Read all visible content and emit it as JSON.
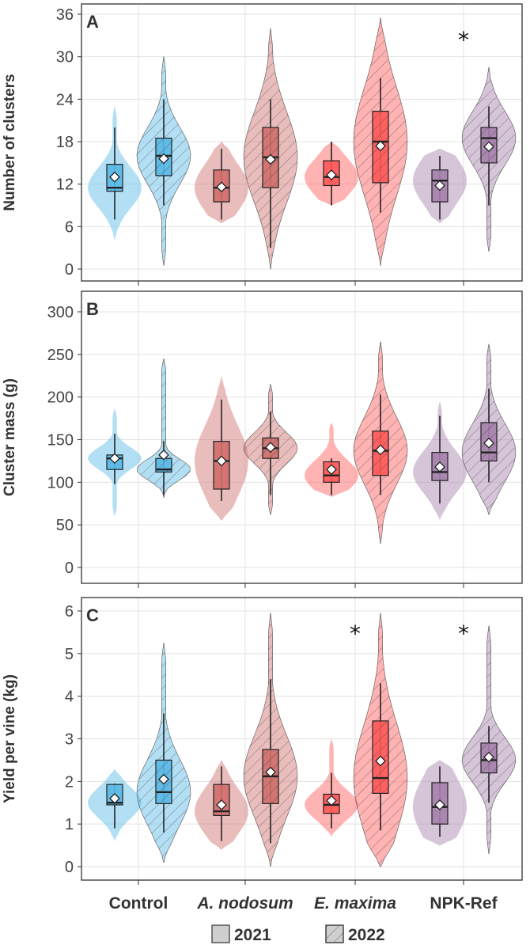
{
  "chart_data": [
    {
      "type": "violin",
      "panel": "A",
      "ylabel": "Number of clusters",
      "ylim": [
        0,
        36
      ],
      "yticks": [
        0,
        6,
        12,
        18,
        24,
        30,
        36
      ],
      "categories": [
        "Control",
        "A. nodosum",
        "E. maxima",
        "NPK-Ref"
      ],
      "colors": [
        "#56b8e6",
        "#cf6d6a",
        "#ff5757",
        "#a57fab"
      ],
      "series": [
        {
          "name": "2021",
          "box": [
            {
              "min": 7,
              "q1": 11,
              "median": 11.5,
              "q3": 14.8,
              "max": 20,
              "mean": 13,
              "range": [
                4,
                23
              ]
            },
            {
              "min": 7,
              "q1": 9.5,
              "median": 11.5,
              "q3": 14,
              "max": 17,
              "mean": 11.6,
              "range": [
                6.5,
                18
              ]
            },
            {
              "min": 9,
              "q1": 11.8,
              "median": 13,
              "q3": 15.3,
              "max": 18,
              "mean": 13.3,
              "range": [
                9,
                18
              ]
            },
            {
              "min": 7,
              "q1": 9.5,
              "median": 12.5,
              "q3": 14,
              "max": 16,
              "mean": 11.8,
              "range": [
                6.5,
                17
              ]
            }
          ]
        },
        {
          "name": "2022",
          "box": [
            {
              "min": 9,
              "q1": 13.2,
              "median": 16,
              "q3": 18.5,
              "max": 24,
              "mean": 15.6,
              "range": [
                0.5,
                30
              ]
            },
            {
              "min": 3,
              "q1": 11.5,
              "median": 15.8,
              "q3": 20,
              "max": 24,
              "mean": 15.5,
              "range": [
                0,
                34
              ]
            },
            {
              "min": 8,
              "q1": 12.2,
              "median": 18,
              "q3": 22.3,
              "max": 27,
              "mean": 17.4,
              "range": [
                0.5,
                35.5
              ]
            },
            {
              "min": 9,
              "q1": 15,
              "median": 18.5,
              "q3": 20,
              "max": 23,
              "mean": 17.3,
              "range": [
                2.5,
                28.5
              ]
            }
          ]
        }
      ],
      "significance": [
        {
          "category": "NPK-Ref",
          "year": "2022",
          "marker": "*"
        }
      ]
    },
    {
      "type": "violin",
      "panel": "B",
      "ylabel": "Cluster mass (g)",
      "ylim": [
        0,
        300
      ],
      "yticks": [
        0,
        50,
        100,
        150,
        200,
        250,
        300
      ],
      "categories": [
        "Control",
        "A. nodosum",
        "E. maxima",
        "NPK-Ref"
      ],
      "series": [
        {
          "name": "2021",
          "box": [
            {
              "min": 98,
              "q1": 115,
              "median": 128,
              "q3": 132,
              "max": 157,
              "mean": 128,
              "range": [
                60,
                187
              ]
            },
            {
              "min": 78,
              "q1": 92,
              "median": 125,
              "q3": 148,
              "max": 197,
              "mean": 125,
              "range": [
                55,
                225
              ]
            },
            {
              "min": 85,
              "q1": 100,
              "median": 108,
              "q3": 124,
              "max": 128,
              "mean": 115,
              "range": [
                83,
                170
              ]
            },
            {
              "min": 75,
              "q1": 102,
              "median": 112,
              "q3": 135,
              "max": 178,
              "mean": 118,
              "range": [
                55,
                195
              ]
            }
          ]
        },
        {
          "name": "2022",
          "box": [
            {
              "min": 85,
              "q1": 112,
              "median": 115,
              "q3": 128,
              "max": 148,
              "mean": 132,
              "range": [
                82,
                245
              ]
            },
            {
              "min": 85,
              "q1": 128,
              "median": 140,
              "q3": 152,
              "max": 183,
              "mean": 141,
              "range": [
                62,
                215
              ]
            },
            {
              "min": 85,
              "q1": 108,
              "median": 137,
              "q3": 160,
              "max": 203,
              "mean": 138,
              "range": [
                28,
                265
              ]
            },
            {
              "min": 100,
              "q1": 125,
              "median": 135,
              "q3": 170,
              "max": 210,
              "mean": 146,
              "range": [
                62,
                262
              ]
            }
          ]
        }
      ],
      "significance": []
    },
    {
      "type": "violin",
      "panel": "C",
      "ylabel": "Yield per vine (kg)",
      "ylim": [
        0,
        6
      ],
      "yticks": [
        0,
        1,
        2,
        3,
        4,
        5,
        6
      ],
      "categories": [
        "Control",
        "A. nodosum",
        "E. maxima",
        "NPK-Ref"
      ],
      "series": [
        {
          "name": "2021",
          "box": [
            {
              "min": 0.9,
              "q1": 1.45,
              "median": 1.5,
              "q3": 1.93,
              "max": 1.95,
              "mean": 1.6,
              "range": [
                0.6,
                2.3
              ]
            },
            {
              "min": 0.6,
              "q1": 1.2,
              "median": 1.3,
              "q3": 1.93,
              "max": 2.35,
              "mean": 1.45,
              "range": [
                0.4,
                2.5
              ]
            },
            {
              "min": 0.9,
              "q1": 1.25,
              "median": 1.45,
              "q3": 1.7,
              "max": 2.2,
              "mean": 1.55,
              "range": [
                0.7,
                3.0
              ]
            },
            {
              "min": 0.7,
              "q1": 1.0,
              "median": 1.4,
              "q3": 1.97,
              "max": 2.35,
              "mean": 1.45,
              "range": [
                0.5,
                2.5
              ]
            }
          ]
        },
        {
          "name": "2022",
          "box": [
            {
              "min": 0.8,
              "q1": 1.48,
              "median": 1.75,
              "q3": 2.5,
              "max": 3.6,
              "mean": 2.05,
              "range": [
                0.1,
                5.25
              ]
            },
            {
              "min": 0.55,
              "q1": 1.48,
              "median": 2.12,
              "q3": 2.75,
              "max": 4.4,
              "mean": 2.22,
              "range": [
                0,
                5.95
              ]
            },
            {
              "min": 0.85,
              "q1": 1.72,
              "median": 2.08,
              "q3": 3.42,
              "max": 4.3,
              "mean": 2.48,
              "range": [
                0,
                5.95
              ]
            },
            {
              "min": 1.5,
              "q1": 2.2,
              "median": 2.5,
              "q3": 2.9,
              "max": 3.3,
              "mean": 2.57,
              "range": [
                0.3,
                5.65
              ]
            }
          ]
        }
      ],
      "significance": [
        {
          "category": "E. maxima",
          "year": "2022",
          "marker": "*"
        },
        {
          "category": "NPK-Ref",
          "year": "2022",
          "marker": "*"
        }
      ]
    }
  ],
  "legend": {
    "items": [
      "2021",
      "2022"
    ]
  }
}
